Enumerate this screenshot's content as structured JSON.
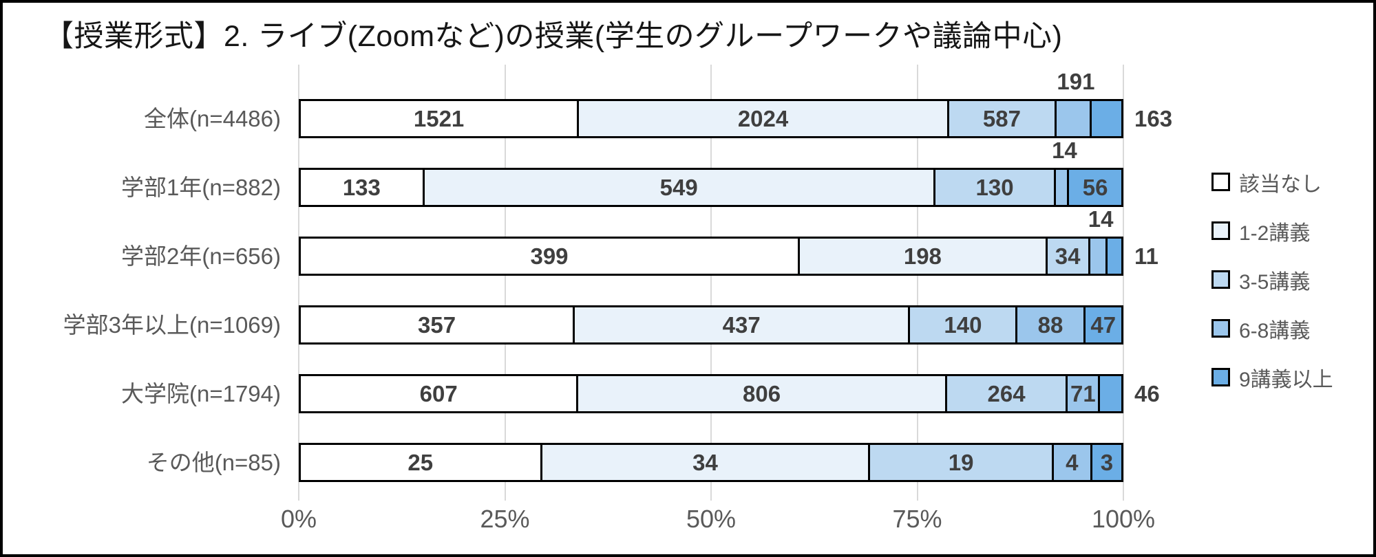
{
  "title": "【授業形式】2. ライブ(Zoomなど)の授業(学生のグループワークや議論中心)",
  "chart_data": {
    "type": "bar",
    "orientation": "horizontal",
    "stacked": "percent",
    "title": "【授業形式】2. ライブ(Zoomなど)の授業(学生のグループワークや議論中心)",
    "categories": [
      "全体(n=4486)",
      "学部1年(n=882)",
      "学部2年(n=656)",
      "学部3年以上(n=1069)",
      "大学院(n=1794)",
      "その他(n=85)"
    ],
    "totals": [
      4486,
      882,
      656,
      1069,
      1794,
      85
    ],
    "series": [
      {
        "name": "該当なし",
        "color": "#ffffff",
        "values": [
          1521,
          133,
          399,
          357,
          607,
          25
        ]
      },
      {
        "name": "1-2講義",
        "color": "#e9f2fa",
        "values": [
          2024,
          549,
          198,
          437,
          806,
          34
        ]
      },
      {
        "name": "3-5講義",
        "color": "#bdd9f1",
        "values": [
          587,
          130,
          34,
          140,
          264,
          19
        ]
      },
      {
        "name": "6-8講義",
        "color": "#9bc6ec",
        "values": [
          191,
          14,
          14,
          88,
          71,
          4
        ]
      },
      {
        "name": "9講義以上",
        "color": "#6baee6",
        "values": [
          163,
          56,
          11,
          47,
          46,
          3
        ]
      }
    ],
    "label_placements": [
      [
        "in",
        "in",
        "in",
        "above",
        "right"
      ],
      [
        "in",
        "in",
        "in",
        "above",
        "in"
      ],
      [
        "in",
        "in",
        "in",
        "above",
        "right"
      ],
      [
        "in",
        "in",
        "in",
        "in",
        "in"
      ],
      [
        "in",
        "in",
        "in",
        "in",
        "right"
      ],
      [
        "in",
        "in",
        "in",
        "in",
        "in"
      ]
    ],
    "x_ticks": [
      "0%",
      "25%",
      "50%",
      "75%",
      "100%"
    ],
    "x_tick_values": [
      0,
      25,
      50,
      75,
      100
    ],
    "xlim": [
      0,
      100
    ],
    "grid": "vertical",
    "legend_position": "right",
    "colors": {
      "segment_border": "#000000",
      "gridline": "#d9d9d9",
      "value_text": "#3f3f3f",
      "axis_text": "#595959",
      "frame_border": "#000000"
    }
  }
}
